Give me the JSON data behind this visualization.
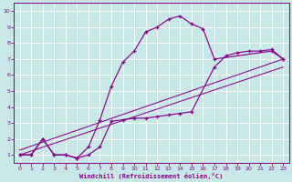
{
  "bg_color": "#c8e8e8",
  "line_color": "#880088",
  "grid_color": "#ffffff",
  "xlim": [
    -0.5,
    23.5
  ],
  "ylim": [
    0.5,
    10.5
  ],
  "xtick_pos": [
    0,
    1,
    2,
    3,
    4,
    5,
    6,
    7,
    8,
    9,
    10,
    11,
    12,
    13,
    14,
    15,
    16,
    17,
    18,
    19,
    20,
    21,
    22,
    23
  ],
  "xtick_labels": [
    "0",
    "1",
    "2",
    "3",
    "4",
    "5",
    "6",
    "7",
    "8",
    "9",
    "10",
    "11",
    "12",
    "13",
    "14",
    "15",
    "16",
    "17",
    "18",
    "19",
    "20",
    "21",
    "22",
    "23"
  ],
  "ytick_pos": [
    1,
    2,
    3,
    4,
    5,
    6,
    7,
    8,
    9,
    10
  ],
  "ytick_labels": [
    "1",
    "2",
    "3",
    "4",
    "5",
    "6",
    "7",
    "8",
    "9",
    "10"
  ],
  "xlabel": "Windchill (Refroidissement éolien,°C)",
  "curve1_x": [
    0,
    1,
    2,
    3,
    4,
    5,
    6,
    7,
    8,
    9,
    10,
    11,
    12,
    13,
    14,
    15,
    16,
    17,
    22,
    23
  ],
  "curve1_y": [
    1,
    1,
    2,
    1,
    1,
    0.8,
    1.5,
    3.2,
    5.3,
    6.8,
    7.5,
    8.7,
    9.0,
    9.5,
    9.7,
    9.2,
    8.9,
    7.0,
    7.5,
    7.0
  ],
  "curve2_x": [
    0,
    1,
    2,
    3,
    4,
    5,
    6,
    7,
    8,
    9,
    10,
    11,
    12,
    13,
    14,
    15,
    17,
    18,
    19,
    20,
    21,
    22,
    23
  ],
  "curve2_y": [
    1,
    1,
    2,
    1,
    1,
    0.8,
    1.0,
    1.5,
    3.1,
    3.2,
    3.3,
    3.3,
    3.4,
    3.5,
    3.6,
    3.7,
    6.5,
    7.2,
    7.4,
    7.5,
    7.5,
    7.6,
    7.0
  ],
  "line1_x": [
    0,
    23
  ],
  "line1_y": [
    1.0,
    6.5
  ],
  "line2_x": [
    0,
    23
  ],
  "line2_y": [
    1.3,
    7.0
  ]
}
